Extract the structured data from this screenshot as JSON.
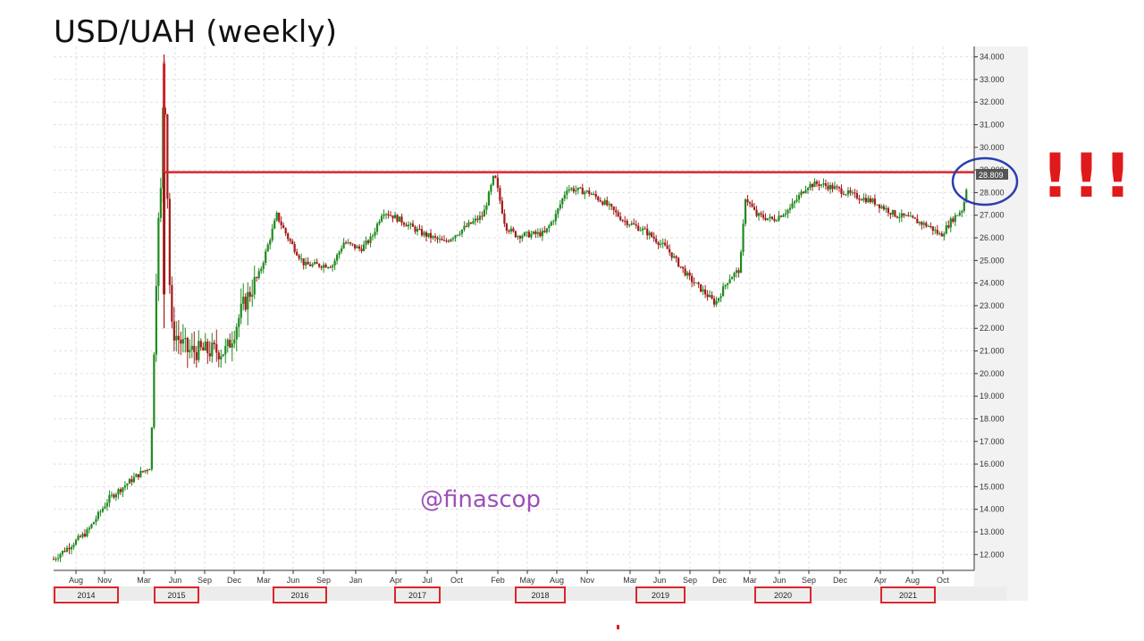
{
  "title": "USD/UAH (weekly)",
  "exclamation": "!!!",
  "watermark": "@finascop",
  "colors": {
    "up": "#1f8a1f",
    "down": "#a31a1a",
    "level_line": "#d9262b",
    "circle": "#2b3fb0",
    "year_box": "#d9262b",
    "watermark": "#9b4fb8",
    "grid": "#e1e1e1",
    "plot_bg": "#ffffff",
    "axis_bg": "#f2f2f2",
    "last_price_bg": "#555555"
  },
  "chart_data": {
    "type": "candlestick",
    "title": "USD/UAH (weekly)",
    "ylim": [
      11.3,
      34.3
    ],
    "grid": true,
    "y_ticks": [
      "12.000",
      "13.000",
      "14.000",
      "15.000",
      "16.000",
      "17.000",
      "18.000",
      "19.000",
      "20.000",
      "21.000",
      "22.000",
      "23.000",
      "24.000",
      "25.000",
      "26.000",
      "27.000",
      "28.000",
      "29.000",
      "30.000",
      "31.000",
      "32.000",
      "33.000",
      "34.000"
    ],
    "month_ticks": [
      "Aug",
      "Nov",
      "Mar",
      "Jun",
      "Sep",
      "Dec",
      "Mar",
      "Jun",
      "Sep",
      "Jan",
      "Apr",
      "Jul",
      "Oct",
      "Feb",
      "May",
      "Aug",
      "Nov",
      "Mar",
      "Jun",
      "Sep",
      "Dec",
      "Mar",
      "Jun",
      "Sep",
      "Dec",
      "Apr",
      "Aug",
      "Oct"
    ],
    "year_labels": [
      "2014",
      "2015",
      "2016",
      "2017",
      "2018",
      "2019",
      "2020",
      "2021"
    ],
    "resistance_level": 28.9,
    "last_price": "28.809",
    "series_path": [
      [
        0.0,
        11.8
      ],
      [
        3.0,
        13.0
      ],
      [
        5.0,
        14.5
      ],
      [
        7.5,
        15.5
      ],
      [
        8.7,
        15.9
      ],
      [
        9.3,
        26.0
      ],
      [
        9.6,
        28.0
      ],
      [
        9.9,
        33.8
      ],
      [
        10.5,
        22.0
      ],
      [
        12.0,
        21.0
      ],
      [
        15.5,
        21.0
      ],
      [
        17.0,
        23.0
      ],
      [
        18.5,
        24.5
      ],
      [
        20.0,
        27.0
      ],
      [
        21.0,
        26.0
      ],
      [
        22.5,
        24.8
      ],
      [
        25.0,
        24.8
      ],
      [
        26.0,
        25.8
      ],
      [
        27.5,
        25.5
      ],
      [
        28.5,
        26.0
      ],
      [
        29.5,
        27.2
      ],
      [
        31.0,
        26.8
      ],
      [
        33.0,
        26.2
      ],
      [
        35.0,
        25.8
      ],
      [
        37.0,
        26.5
      ],
      [
        38.5,
        27.0
      ],
      [
        39.5,
        28.8
      ],
      [
        40.5,
        26.5
      ],
      [
        41.5,
        26.1
      ],
      [
        44.0,
        26.2
      ],
      [
        45.0,
        27.0
      ],
      [
        46.0,
        28.2
      ],
      [
        48.0,
        28.0
      ],
      [
        49.5,
        27.5
      ],
      [
        51.0,
        26.8
      ],
      [
        53.0,
        26.3
      ],
      [
        55.0,
        25.5
      ],
      [
        57.0,
        24.2
      ],
      [
        58.5,
        23.5
      ],
      [
        59.3,
        23.1
      ],
      [
        60.5,
        24.2
      ],
      [
        61.5,
        24.6
      ],
      [
        62.0,
        27.8
      ],
      [
        63.0,
        27.0
      ],
      [
        64.5,
        26.8
      ],
      [
        66.0,
        27.3
      ],
      [
        67.5,
        28.3
      ],
      [
        68.5,
        28.4
      ],
      [
        70.0,
        28.2
      ],
      [
        71.5,
        27.9
      ],
      [
        73.5,
        27.6
      ],
      [
        75.5,
        27.0
      ],
      [
        76.5,
        26.9
      ],
      [
        78.5,
        26.5
      ],
      [
        79.5,
        26.1
      ],
      [
        80.5,
        26.8
      ],
      [
        81.5,
        27.3
      ],
      [
        82.0,
        28.8
      ]
    ],
    "highlighted_region": "last price near 28.8"
  }
}
